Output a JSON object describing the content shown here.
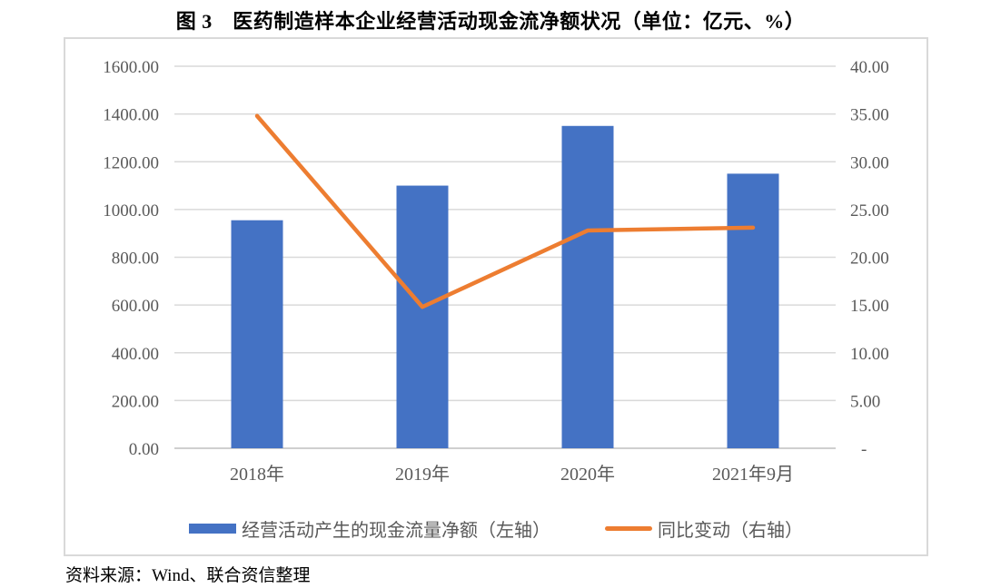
{
  "title": "图 3　医药制造样本企业经营活动现金流净额状况（单位：亿元、%）",
  "source": "资料来源：Wind、联合资信整理",
  "legend": [
    {
      "label": "经营活动产生的现金流量净额（左轴）",
      "marker": "bar-swatch",
      "color": "#4472C4"
    },
    {
      "label": "同比变动（右轴）",
      "marker": "line-swatch",
      "color": "#ED7D31"
    }
  ],
  "colors": {
    "bar": "#4472C4",
    "line": "#ED7D31",
    "grid": "#D9D9D9",
    "axis_line": "#BFBFBF",
    "tick_text": "#595959",
    "chart_border": "#D9D9D9"
  },
  "chart_data": {
    "type": "bar",
    "subtype": "bar-line-combo",
    "title": "图 3　医药制造样本企业经营活动现金流净额状况（单位：亿元、%）",
    "categories": [
      "2018年",
      "2019年",
      "2020年",
      "2021年9月"
    ],
    "series": [
      {
        "name": "经营活动产生的现金流量净额（左轴）",
        "type": "bar",
        "axis": "left",
        "color": "#4472C4",
        "values": [
          955,
          1100,
          1350,
          1150
        ]
      },
      {
        "name": "同比变动（右轴）",
        "type": "line",
        "axis": "right",
        "color": "#ED7D31",
        "values": [
          34.8,
          14.8,
          22.8,
          23.1
        ]
      }
    ],
    "left_axis": {
      "min": 0,
      "max": 1600,
      "tick_labels": [
        "1600.00",
        "1400.00",
        "1200.00",
        "1000.00",
        "800.00",
        "600.00",
        "400.00",
        "200.00",
        "0.00"
      ]
    },
    "right_axis": {
      "min": 0,
      "max": 40,
      "tick_labels": [
        "40.00",
        "35.00",
        "30.00",
        "25.00",
        "20.00",
        "15.00",
        "10.00",
        "5.00",
        "-"
      ]
    },
    "xlabel": "",
    "ylabel": "",
    "grid": true,
    "legend_position": "bottom"
  }
}
